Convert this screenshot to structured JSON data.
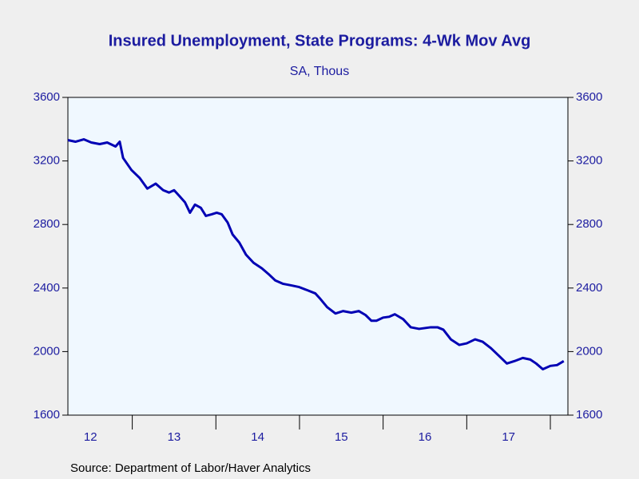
{
  "chart_data": {
    "type": "line",
    "title": "Insured Unemployment, State Programs: 4-Wk Mov Avg",
    "subtitle": "SA, Thous",
    "source": "Source:  Department of Labor/Haver Analytics",
    "x": [
      2012.23,
      2012.32,
      2012.42,
      2012.51,
      2012.61,
      2012.7,
      2012.8,
      2012.85,
      2012.89,
      2012.99,
      2013.09,
      2013.18,
      2013.28,
      2013.37,
      2013.44,
      2013.5,
      2013.56,
      2013.63,
      2013.69,
      2013.75,
      2013.82,
      2013.88,
      2013.95,
      2014.01,
      2014.07,
      2014.14,
      2014.2,
      2014.28,
      2014.36,
      2014.45,
      2014.55,
      2014.64,
      2014.71,
      2014.8,
      2014.9,
      2014.99,
      2015.09,
      2015.19,
      2015.25,
      2015.33,
      2015.43,
      2015.52,
      2015.62,
      2015.71,
      2015.79,
      2015.86,
      2015.92,
      2016.0,
      2016.07,
      2016.14,
      2016.24,
      2016.33,
      2016.43,
      2016.57,
      2016.65,
      2016.72,
      2016.81,
      2016.91,
      2017.0,
      2017.1,
      2017.19,
      2017.29,
      2017.38,
      2017.48,
      2017.57,
      2017.67,
      2017.76,
      2017.83,
      2017.91,
      2018.0,
      2018.08,
      2018.16
    ],
    "series": [
      {
        "name": "Insured Unemployment",
        "color": "#0000b4",
        "values": [
          3331,
          3321,
          3336,
          3316,
          3306,
          3316,
          3291,
          3321,
          3219,
          3143,
          3092,
          3026,
          3057,
          3016,
          3001,
          3016,
          2981,
          2940,
          2874,
          2925,
          2905,
          2854,
          2864,
          2874,
          2864,
          2813,
          2737,
          2686,
          2610,
          2559,
          2524,
          2483,
          2448,
          2427,
          2417,
          2407,
          2387,
          2366,
          2331,
          2280,
          2240,
          2255,
          2245,
          2255,
          2230,
          2194,
          2194,
          2214,
          2219,
          2235,
          2204,
          2153,
          2143,
          2153,
          2153,
          2138,
          2077,
          2042,
          2052,
          2077,
          2062,
          2021,
          1976,
          1925,
          1940,
          1960,
          1950,
          1925,
          1889,
          1910,
          1915,
          1940
        ]
      }
    ],
    "xlim": [
      2012.23,
      2018.21
    ],
    "xticks": [
      2013,
      2014,
      2015,
      2016,
      2017,
      2018
    ],
    "xlabels": [
      {
        "value": 2012.5,
        "label": "12"
      },
      {
        "value": 2013.5,
        "label": "13"
      },
      {
        "value": 2014.5,
        "label": "14"
      },
      {
        "value": 2015.5,
        "label": "15"
      },
      {
        "value": 2016.5,
        "label": "16"
      },
      {
        "value": 2017.5,
        "label": "17"
      }
    ],
    "ylim": [
      1600,
      3600
    ],
    "yticks": [
      1600,
      2000,
      2400,
      2800,
      3200,
      3600
    ]
  }
}
